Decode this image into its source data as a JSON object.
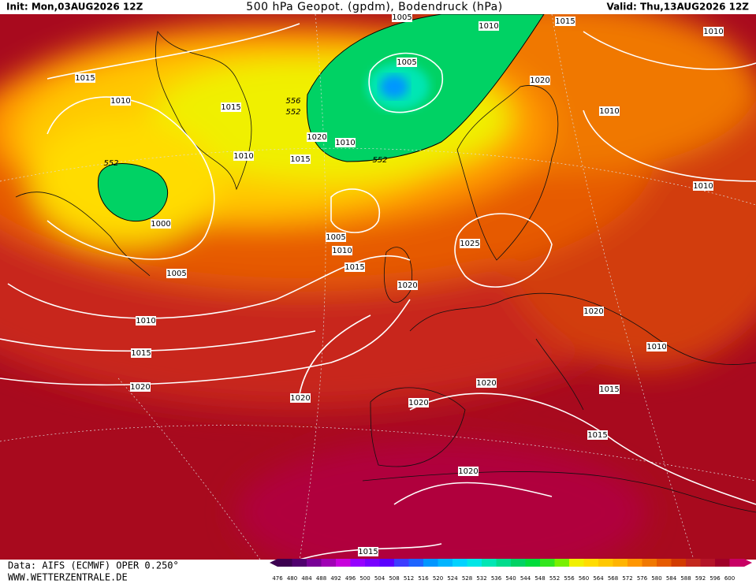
{
  "header": {
    "init": "Init: Mon,03AUG2026 12Z",
    "title": "500 hPa Geopot. (gpdm), Bodendruck (hPa)",
    "valid": "Valid: Thu,13AUG2026 12Z"
  },
  "footer": {
    "source": "Data: AIFS (ECMWF) OPER 0.250°",
    "site": "WWW.WETTERZENTRALE.DE"
  },
  "isobar_labels": [
    1005,
    1010,
    1015,
    1010,
    1015,
    1010,
    1005,
    1020,
    1015,
    1010,
    1020,
    1010,
    1015,
    1010,
    1010,
    1000,
    1005,
    1010,
    1015,
    1025,
    1020,
    1005,
    1010,
    1020,
    1010,
    1015,
    1020,
    1020,
    1015,
    1020,
    1020,
    1015,
    1020,
    1015
  ],
  "geopotential_labels": [
    552,
    552,
    556,
    552
  ],
  "colorbar": {
    "labels": [
      476,
      480,
      484,
      488,
      492,
      496,
      500,
      504,
      508,
      512,
      516,
      520,
      524,
      528,
      532,
      536,
      540,
      544,
      548,
      552,
      556,
      560,
      564,
      568,
      572,
      576,
      580,
      584,
      588,
      592,
      596,
      600
    ],
    "colors": [
      "#3c0050",
      "#50006e",
      "#780096",
      "#a000b4",
      "#c800dc",
      "#9600ff",
      "#7800ff",
      "#5a00ff",
      "#3c3cff",
      "#1e64ff",
      "#0096ff",
      "#00b4ff",
      "#00d2ff",
      "#00e6e6",
      "#00e6b4",
      "#00dc8c",
      "#00d264",
      "#00dc3c",
      "#32e61e",
      "#78f000",
      "#f0f000",
      "#ffdc00",
      "#ffc800",
      "#ffb400",
      "#ff9600",
      "#f07800",
      "#e65a00",
      "#d23c00",
      "#c3281e",
      "#b41428",
      "#a00028",
      "#c80064"
    ]
  }
}
